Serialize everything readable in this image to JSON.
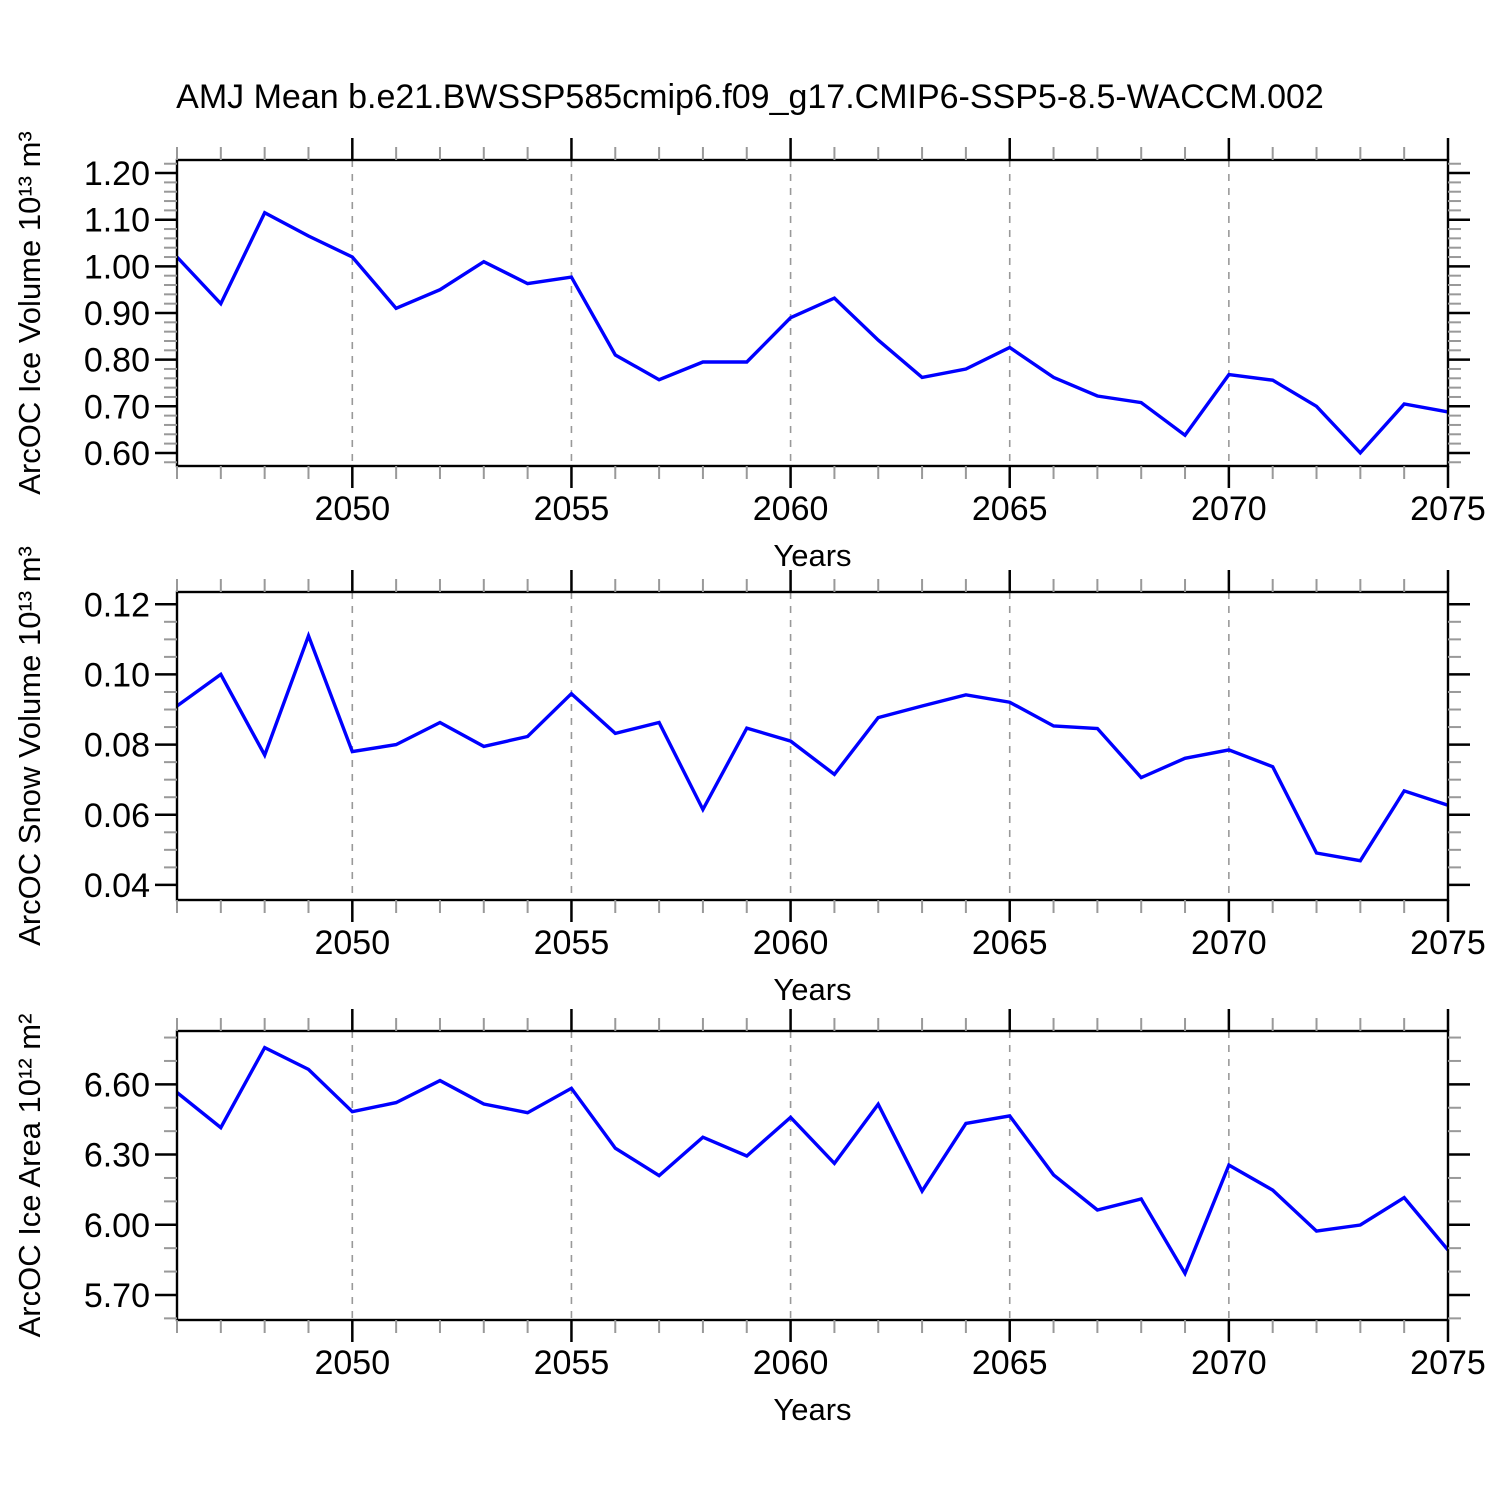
{
  "title": "AMJ Mean b.e21.BWSSP585cmip6.f09_g17.CMIP6-SSP5-8.5-WACCM.002",
  "colors": {
    "line": "#0000ff",
    "axis": "#000000",
    "minor_tick": "#999999",
    "grid": "#999999",
    "text": "#000000"
  },
  "chart_data": [
    {
      "type": "line",
      "name": "ice-volume",
      "ylabel": "ArcOC Ice Volume 10¹³ m³",
      "xlabel": "Years",
      "x": [
        2046,
        2047,
        2048,
        2049,
        2050,
        2051,
        2052,
        2053,
        2054,
        2055,
        2056,
        2057,
        2058,
        2059,
        2060,
        2061,
        2062,
        2063,
        2064,
        2065,
        2066,
        2067,
        2068,
        2069,
        2070,
        2071,
        2072,
        2073,
        2074,
        2075
      ],
      "values": [
        1.02,
        0.92,
        1.115,
        1.065,
        1.02,
        0.91,
        0.95,
        1.01,
        0.963,
        0.977,
        0.81,
        0.757,
        0.795,
        0.795,
        0.89,
        0.932,
        0.842,
        0.762,
        0.78,
        0.826,
        0.762,
        0.722,
        0.708,
        0.638,
        0.768,
        0.756,
        0.7,
        0.6,
        0.705,
        0.688
      ],
      "xlim": [
        2046,
        2075
      ],
      "ylim": [
        0.572,
        1.228
      ],
      "xticks": [
        2050,
        2055,
        2060,
        2065,
        2070,
        2075
      ],
      "xtick_labels": [
        "2050",
        "2055",
        "2060",
        "2065",
        "2070",
        "2075"
      ],
      "x_minor_step": 1,
      "yticks": [
        0.6,
        0.7,
        0.8,
        0.9,
        1.0,
        1.1,
        1.2
      ],
      "ytick_labels": [
        "0.60",
        "0.70",
        "0.80",
        "0.90",
        "1.00",
        "1.10",
        "1.20"
      ],
      "y_minor_step": 0.02,
      "grid": "vertical-dashed"
    },
    {
      "type": "line",
      "name": "snow-volume",
      "ylabel": "ArcOC Snow Volume 10¹³ m³",
      "xlabel": "Years",
      "x": [
        2046,
        2047,
        2048,
        2049,
        2050,
        2051,
        2052,
        2053,
        2054,
        2055,
        2056,
        2057,
        2058,
        2059,
        2060,
        2061,
        2062,
        2063,
        2064,
        2065,
        2066,
        2067,
        2068,
        2069,
        2070,
        2071,
        2072,
        2073,
        2074,
        2075
      ],
      "values": [
        0.091,
        0.1,
        0.077,
        0.111,
        0.078,
        0.08,
        0.0863,
        0.0795,
        0.0823,
        0.0945,
        0.0832,
        0.0863,
        0.0615,
        0.0847,
        0.081,
        0.0715,
        0.0877,
        0.091,
        0.0942,
        0.0921,
        0.0853,
        0.0846,
        0.0706,
        0.0761,
        0.0785,
        0.0737,
        0.0491,
        0.0469,
        0.0668,
        0.0627
      ],
      "xlim": [
        2046,
        2075
      ],
      "ylim": [
        0.0357,
        0.1235
      ],
      "xticks": [
        2050,
        2055,
        2060,
        2065,
        2070,
        2075
      ],
      "xtick_labels": [
        "2050",
        "2055",
        "2060",
        "2065",
        "2070",
        "2075"
      ],
      "x_minor_step": 1,
      "yticks": [
        0.04,
        0.06,
        0.08,
        0.1,
        0.12
      ],
      "ytick_labels": [
        "0.04",
        "0.06",
        "0.08",
        "0.10",
        "0.12"
      ],
      "y_minor_step": 0.005,
      "grid": "vertical-dashed"
    },
    {
      "type": "line",
      "name": "ice-area",
      "ylabel": "ArcOC Ice Area 10¹² m²",
      "xlabel": "Years",
      "x": [
        2046,
        2047,
        2048,
        2049,
        2050,
        2051,
        2052,
        2053,
        2054,
        2055,
        2056,
        2057,
        2058,
        2059,
        2060,
        2061,
        2062,
        2063,
        2064,
        2065,
        2066,
        2067,
        2068,
        2069,
        2070,
        2071,
        2072,
        2073,
        2074,
        2075
      ],
      "values": [
        6.565,
        6.415,
        6.757,
        6.664,
        6.483,
        6.522,
        6.616,
        6.516,
        6.479,
        6.583,
        6.327,
        6.21,
        6.374,
        6.294,
        6.459,
        6.262,
        6.515,
        6.144,
        6.433,
        6.465,
        6.213,
        6.063,
        6.11,
        5.792,
        6.255,
        6.148,
        5.973,
        5.999,
        6.116,
        5.892
      ],
      "xlim": [
        2046,
        2075
      ],
      "ylim": [
        5.593,
        6.828
      ],
      "xticks": [
        2050,
        2055,
        2060,
        2065,
        2070,
        2075
      ],
      "xtick_labels": [
        "2050",
        "2055",
        "2060",
        "2065",
        "2070",
        "2075"
      ],
      "x_minor_step": 1,
      "yticks": [
        5.7,
        6.0,
        6.3,
        6.6
      ],
      "ytick_labels": [
        "5.70",
        "6.00",
        "6.30",
        "6.60"
      ],
      "y_minor_step": 0.1,
      "grid": "vertical-dashed"
    }
  ]
}
